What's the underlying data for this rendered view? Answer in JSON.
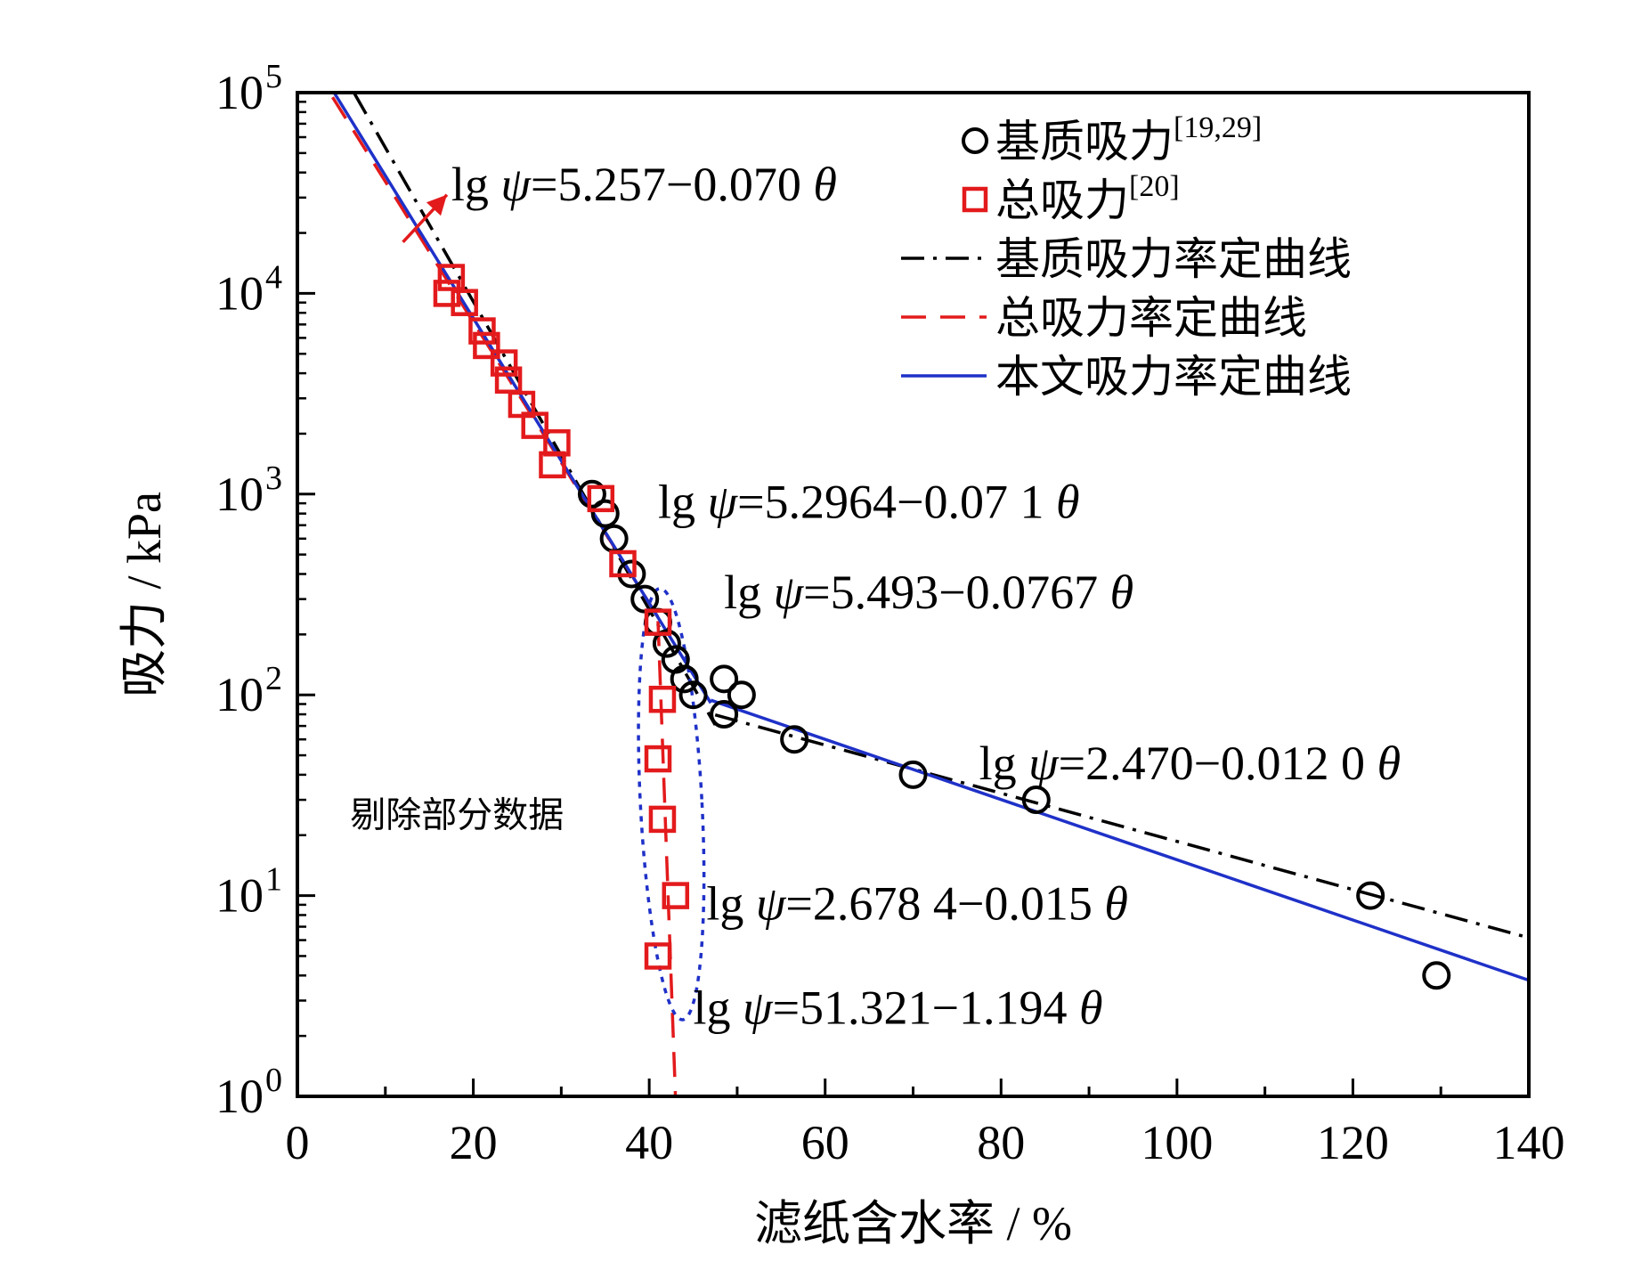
{
  "chart_data": {
    "type": "scatter",
    "x_scale": "linear",
    "y_scale": "log",
    "xlabel": "滤纸含水率 / %",
    "ylabel": "吸力 / kPa",
    "xlim": [
      0,
      140
    ],
    "ylim": [
      1,
      100000
    ],
    "x_ticks": [
      0,
      20,
      40,
      60,
      80,
      100,
      120,
      140
    ],
    "x_tick_labels": [
      "0",
      "20",
      "40",
      "60",
      "80",
      "100",
      "120",
      "140"
    ],
    "y_ticks": [
      {
        "value": 1,
        "base": "10",
        "exp": "0"
      },
      {
        "value": 10,
        "base": "10",
        "exp": "1"
      },
      {
        "value": 100,
        "base": "10",
        "exp": "2"
      },
      {
        "value": 1000,
        "base": "10",
        "exp": "3"
      },
      {
        "value": 10000,
        "base": "10",
        "exp": "4"
      },
      {
        "value": 100000,
        "base": "10",
        "exp": "5"
      }
    ],
    "grid": false,
    "legend_position": "top-right",
    "series": [
      {
        "name": "基质吸力",
        "ref": "[19,29]",
        "kind": "scatter",
        "marker": "circle",
        "color": "#000000",
        "points": [
          [
            33.5,
            1000
          ],
          [
            35,
            800
          ],
          [
            36,
            600
          ],
          [
            38,
            400
          ],
          [
            39.5,
            300
          ],
          [
            41,
            230
          ],
          [
            42,
            180
          ],
          [
            43,
            150
          ],
          [
            44,
            120
          ],
          [
            45,
            100
          ],
          [
            48.5,
            80
          ],
          [
            48.5,
            120
          ],
          [
            50.5,
            100
          ],
          [
            56.5,
            60
          ],
          [
            70,
            40
          ],
          [
            84,
            30
          ],
          [
            122,
            10
          ],
          [
            129.5,
            4
          ]
        ]
      },
      {
        "name": "总吸力",
        "ref": "[20]",
        "kind": "scatter",
        "marker": "square",
        "color": "#e31a1c",
        "points": [
          [
            17.5,
            12000
          ],
          [
            17,
            10000
          ],
          [
            19,
            9000
          ],
          [
            21,
            6500
          ],
          [
            21.5,
            5500
          ],
          [
            23.5,
            4500
          ],
          [
            24,
            3700
          ],
          [
            25.5,
            2800
          ],
          [
            27,
            2200
          ],
          [
            29.5,
            1800
          ],
          [
            29,
            1400
          ],
          [
            34.5,
            950
          ],
          [
            37,
            450
          ],
          [
            41,
            230
          ],
          [
            41.5,
            95
          ],
          [
            41,
            48
          ],
          [
            41.5,
            24
          ],
          [
            43,
            10
          ],
          [
            41,
            5
          ]
        ]
      },
      {
        "name": "基质吸力率定曲线",
        "kind": "line",
        "style": "dashdot",
        "color": "#000000",
        "segments": [
          {
            "a": 5.493,
            "b": 0.0767,
            "x_range": [
              6.5,
              47.5
            ]
          },
          {
            "a": 2.47,
            "b": 0.012,
            "x_range": [
              47.5,
              140
            ]
          }
        ]
      },
      {
        "name": "总吸力率定曲线",
        "kind": "line",
        "style": "dashed",
        "color": "#e31a1c",
        "segments": [
          {
            "a": 5.257,
            "b": 0.07,
            "x_range": [
              4,
              41
            ]
          },
          {
            "a": 51.321,
            "b": 1.194,
            "x_range": [
              41,
              43
            ]
          }
        ]
      },
      {
        "name": "本文吸力率定曲线",
        "kind": "line",
        "style": "solid",
        "color": "#1f31c8",
        "segments": [
          {
            "a": 5.2964,
            "b": 0.071,
            "x_range": [
              4,
              47
            ]
          },
          {
            "a": 2.6784,
            "b": 0.015,
            "x_range": [
              47,
              140
            ]
          }
        ]
      }
    ],
    "equations": [
      {
        "prefix": "lg ",
        "psi": "ψ",
        "rest": "=5.257−0.070 ",
        "theta": "θ",
        "at": [
          17.5,
          29000
        ],
        "color": "#000000"
      },
      {
        "prefix": "lg ",
        "psi": "ψ",
        "rest": "=5.2964−0.07 1 ",
        "theta": "θ",
        "at": [
          41,
          760
        ],
        "color": "#000000"
      },
      {
        "prefix": "lg ",
        "psi": "ψ",
        "rest": "=5.493−0.0767 ",
        "theta": "θ",
        "at": [
          48.5,
          270
        ],
        "color": "#000000"
      },
      {
        "prefix": "lg ",
        "psi": "ψ",
        "rest": "=2.470−0.012 0 ",
        "theta": "θ",
        "at": [
          77.5,
          38
        ],
        "color": "#000000"
      },
      {
        "prefix": "lg ",
        "psi": "ψ",
        "rest": "=2.678 4−0.015 ",
        "theta": "θ",
        "at": [
          46.5,
          7.6
        ],
        "color": "#000000"
      },
      {
        "prefix": "lg ",
        "psi": "ψ",
        "rest": "=51.321−1.194 ",
        "theta": "θ",
        "at": [
          45,
          2.3
        ],
        "color": "#000000"
      }
    ],
    "annotations": [
      {
        "text": "剔除部分数据",
        "at": [
          6,
          22
        ]
      }
    ],
    "highlight_region": {
      "shape": "ellipse",
      "center": [
        42.5,
        18
      ],
      "x_radius": 3.5,
      "y_range": [
        2.4,
        340
      ],
      "color": "#1f31c8",
      "style": "dotted"
    }
  }
}
